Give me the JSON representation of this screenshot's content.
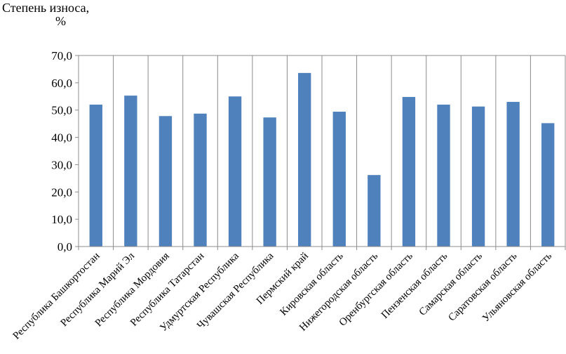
{
  "chart_data": {
    "type": "bar",
    "ylabel_line1": "Степень износа,",
    "ylabel_line2": "%",
    "xlabel": "",
    "categories": [
      "Республика Башкортостан",
      "Республика Марий Эл",
      "Республика Мордовия",
      "Республика Татарстан",
      "Удмуртская Республика",
      "Чувашская Республика",
      "Пермский край",
      "Кировская область",
      "Нижегородская область",
      "Оренбургская область",
      "Пензенская область",
      "Самарская область",
      "Саратовская область",
      "Ульяновская область"
    ],
    "values": [
      52.0,
      55.3,
      47.8,
      48.7,
      55.0,
      47.3,
      63.6,
      49.4,
      26.2,
      54.8,
      52.0,
      51.3,
      53.0,
      45.2
    ],
    "ylim": [
      0,
      70
    ],
    "yticks": [
      "0,0",
      "10,0",
      "20,0",
      "30,0",
      "40,0",
      "50,0",
      "60,0",
      "70,0"
    ],
    "grid": "vertical",
    "bar_color": "#4F81BD"
  }
}
